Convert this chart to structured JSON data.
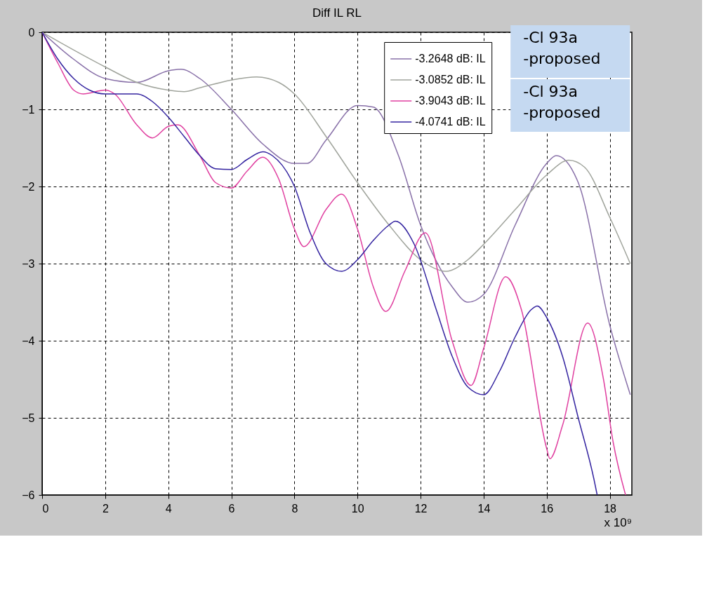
{
  "chart_data": {
    "type": "line",
    "title": "Diff IL RL",
    "xlim": [
      0,
      18.7
    ],
    "xticks": [
      0,
      2,
      4,
      6,
      8,
      10,
      12,
      14,
      16,
      18
    ],
    "ylim": [
      -6,
      0
    ],
    "yticks": [
      -6,
      -5,
      -4,
      -3,
      -2,
      -1,
      0
    ],
    "grid": true,
    "legend": "top right",
    "line_style": "solid",
    "marker": "none",
    "annotations": [
      "-Cl 93a\n-proposed",
      "-Cl 93a\n-proposed",
      "x 10⁹"
    ],
    "series": [
      {
        "name": "-3.2648 dB: IL",
        "color": "#8870a8",
        "x": [
          0,
          1,
          2,
          3,
          4,
          4.4,
          5,
          6,
          7,
          8,
          8.4,
          9,
          10,
          10.5,
          11.3,
          12,
          13,
          13.5,
          14,
          15,
          16,
          16.3,
          17,
          18,
          18.65
        ],
        "values": [
          0,
          -0.35,
          -0.6,
          -0.65,
          -0.5,
          -0.48,
          -0.6,
          -1.0,
          -1.45,
          -1.7,
          -1.7,
          -1.4,
          -0.95,
          -0.97,
          -1.6,
          -2.5,
          -3.3,
          -3.5,
          -3.4,
          -2.5,
          -1.7,
          -1.6,
          -1.95,
          -3.8,
          -4.7
        ]
      },
      {
        "name": "-3.0852 dB: IL",
        "color": "#a0a49c",
        "x": [
          0,
          2,
          3,
          4,
          4.5,
          5,
          6,
          6.8,
          7.5,
          8,
          9,
          10,
          11,
          12,
          12.8,
          13.5,
          14,
          15,
          16,
          16.7,
          17.2,
          18,
          18.65
        ],
        "values": [
          0,
          -0.45,
          -0.65,
          -0.75,
          -0.77,
          -0.72,
          -0.62,
          -0.58,
          -0.65,
          -0.8,
          -1.35,
          -1.95,
          -2.5,
          -2.95,
          -3.1,
          -2.95,
          -2.75,
          -2.3,
          -1.85,
          -1.66,
          -1.75,
          -2.4,
          -3.0
        ]
      },
      {
        "name": "-3.9043 dB: IL",
        "color": "#e040a0",
        "x": [
          0,
          0.5,
          1,
          1.3,
          2,
          2.3,
          3,
          3.5,
          4,
          4.3,
          5,
          5.5,
          6,
          6.5,
          7,
          7.5,
          8,
          8.3,
          9,
          9.5,
          10,
          10.5,
          10.9,
          11.5,
          12.15,
          13,
          13.6,
          14,
          14.7,
          15.2,
          16,
          16.1,
          16.5,
          17.3,
          17.8,
          18.1,
          18.5
        ],
        "values": [
          0,
          -0.4,
          -0.75,
          -0.8,
          -0.75,
          -0.8,
          -1.2,
          -1.37,
          -1.22,
          -1.2,
          -1.6,
          -1.95,
          -2.02,
          -1.8,
          -1.62,
          -1.9,
          -2.55,
          -2.78,
          -2.3,
          -2.1,
          -2.55,
          -3.3,
          -3.62,
          -3.1,
          -2.6,
          -4.0,
          -4.58,
          -4.1,
          -3.17,
          -3.6,
          -5.4,
          -5.53,
          -5.1,
          -3.77,
          -4.5,
          -5.3,
          -6.0
        ]
      },
      {
        "name": "-4.0741 dB: IL",
        "color": "#3424a0",
        "x": [
          0,
          0.5,
          1,
          1.5,
          2,
          3,
          3.5,
          4,
          4.5,
          5,
          5.5,
          6,
          6.5,
          7,
          7.3,
          8,
          8.5,
          9,
          9.5,
          10,
          10.5,
          11,
          11.2,
          11.8,
          12.5,
          13,
          13.5,
          14,
          14.5,
          15,
          15.5,
          15.7,
          16,
          16.5,
          17,
          17.5,
          17.6
        ],
        "values": [
          0,
          -0.35,
          -0.6,
          -0.75,
          -0.8,
          -0.8,
          -0.9,
          -1.1,
          -1.35,
          -1.6,
          -1.77,
          -1.78,
          -1.65,
          -1.55,
          -1.6,
          -2.0,
          -2.6,
          -3.0,
          -3.1,
          -2.95,
          -2.7,
          -2.5,
          -2.45,
          -2.75,
          -3.6,
          -4.2,
          -4.6,
          -4.7,
          -4.4,
          -3.95,
          -3.6,
          -3.55,
          -3.7,
          -4.2,
          -5.0,
          -5.8,
          -6.0
        ]
      }
    ]
  }
}
